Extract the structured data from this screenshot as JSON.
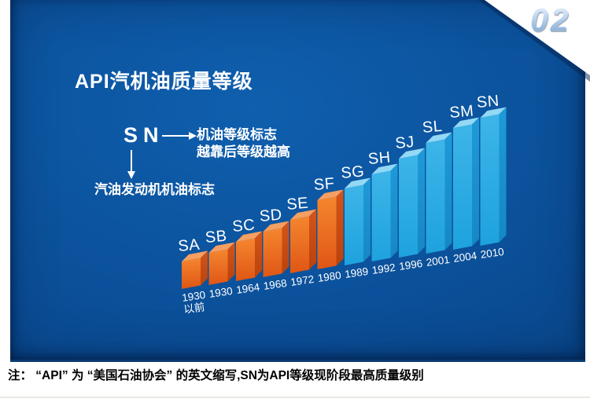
{
  "badge": {
    "number": "02"
  },
  "header": {
    "title": "API汽机油质量等级"
  },
  "annotation": {
    "example_grade": "SN",
    "grade_mark_label": "机油等级标志",
    "grade_order_note": "越靠后等级越高",
    "engine_oil_mark_label": "汽油发动机机油标志"
  },
  "footnote": "注： “API” 为 “美国石油协会” 的英文缩写,SN为API等级现阶段最高质量级别",
  "colors": {
    "panel_bg_center": "#0f5fae",
    "panel_bg_mid": "#0a4c94",
    "panel_bg_edge": "#083d7a",
    "text_white": "#ffffff",
    "footnote_text": "#000000",
    "divider": "#e9e9e3",
    "badge_gradient_top": "#e2eefb",
    "badge_gradient_bottom": "#7fa9d6",
    "orange_front_top": "#f5862f",
    "orange_front_bottom": "#e05615",
    "orange_side_top": "#d4541a",
    "orange_side_bottom": "#b8430c",
    "orange_top_face": "#f59f62",
    "blue_front_top": "#3db5e8",
    "blue_front_bottom": "#1ea2de",
    "blue_side_top": "#1e9ad8",
    "blue_side_bottom": "#1588c4",
    "blue_top_face": "#93d8f5"
  },
  "chart_data": {
    "type": "bar",
    "title": "API汽机油质量等级",
    "categories": [
      "SA",
      "SB",
      "SC",
      "SD",
      "SE",
      "SF",
      "SG",
      "SH",
      "SJ",
      "SL",
      "SM",
      "SN"
    ],
    "x_labels": [
      "1930\n以前",
      "1930",
      "1964",
      "1968",
      "1972",
      "1980",
      "1989",
      "1992",
      "1996",
      "2001",
      "2004",
      "2010"
    ],
    "values": [
      35,
      41,
      50,
      58,
      68,
      88,
      98,
      111,
      126,
      141,
      155,
      163
    ],
    "series": [
      {
        "name": "SA–SF",
        "color": "#ee6b21",
        "indices": [
          0,
          1,
          2,
          3,
          4,
          5
        ]
      },
      {
        "name": "SG–SN",
        "color": "#29a9e1",
        "indices": [
          6,
          7,
          8,
          9,
          10,
          11
        ]
      }
    ],
    "xlabel": "",
    "ylabel": "",
    "axes": false,
    "grid": false,
    "legend": false,
    "style": "3d-rising-baseline"
  }
}
